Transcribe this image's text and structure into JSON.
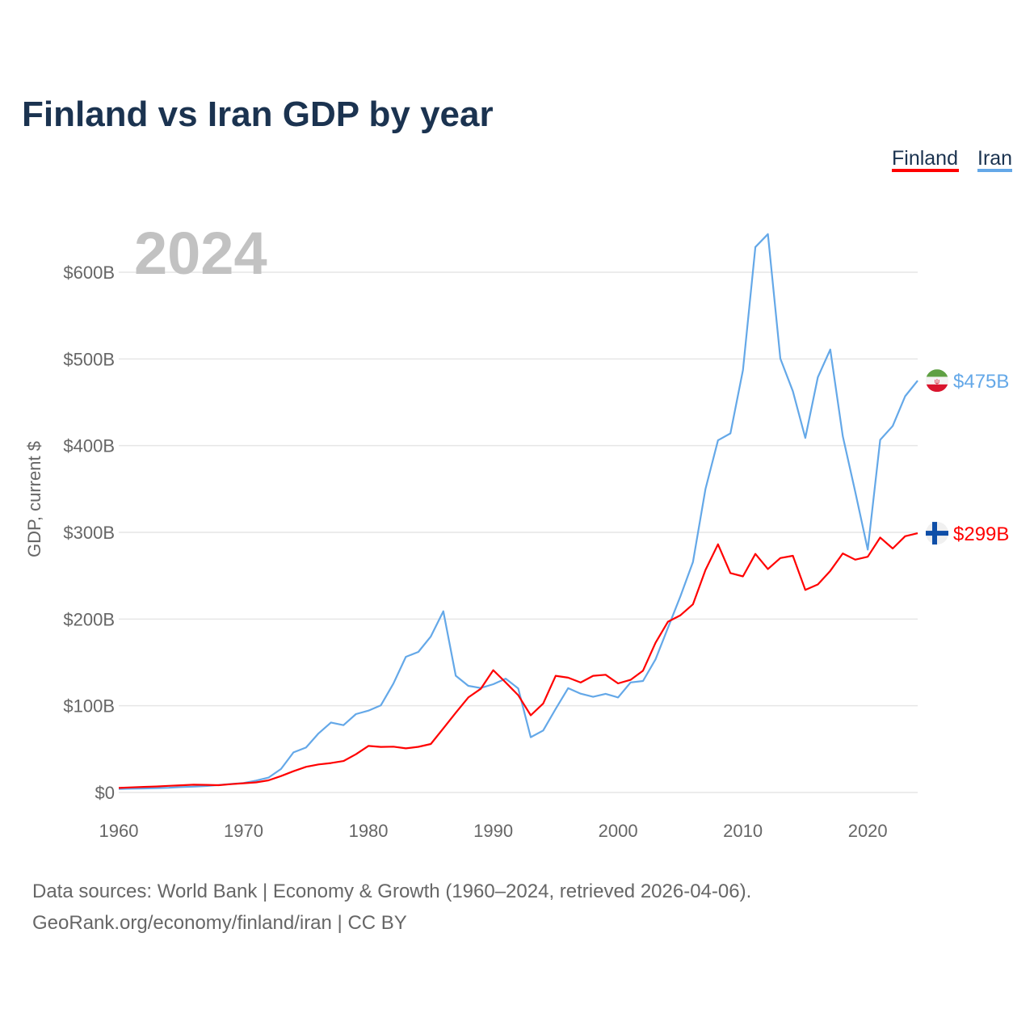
{
  "chart_data": {
    "type": "line",
    "title": "Finland vs Iran GDP by year",
    "ylabel": "GDP, current $",
    "xlabel": "",
    "current_year": "2024",
    "xlim": [
      1960,
      2024
    ],
    "ylim": [
      0,
      600
    ],
    "x_ticks": [
      1960,
      1970,
      1980,
      1990,
      2000,
      2010,
      2020
    ],
    "x_tick_labels": [
      "1960",
      "1970",
      "1980",
      "1990",
      "2000",
      "2010",
      "2020"
    ],
    "y_ticks": [
      0,
      100,
      200,
      300,
      400,
      500,
      600
    ],
    "y_tick_labels": [
      "$0",
      "$100B",
      "$200B",
      "$300B",
      "$400B",
      "$500B",
      "$600B"
    ],
    "grid": true,
    "legend_position": "top-right",
    "x": [
      1960,
      1961,
      1962,
      1963,
      1964,
      1965,
      1966,
      1967,
      1968,
      1969,
      1970,
      1971,
      1972,
      1973,
      1974,
      1975,
      1976,
      1977,
      1978,
      1979,
      1980,
      1981,
      1982,
      1983,
      1984,
      1985,
      1986,
      1987,
      1988,
      1989,
      1990,
      1991,
      1992,
      1993,
      1994,
      1995,
      1996,
      1997,
      1998,
      1999,
      2000,
      2001,
      2002,
      2003,
      2004,
      2005,
      2006,
      2007,
      2008,
      2009,
      2010,
      2011,
      2012,
      2013,
      2014,
      2015,
      2016,
      2017,
      2018,
      2019,
      2020,
      2021,
      2022,
      2023,
      2024
    ],
    "series": [
      {
        "name": "Finland",
        "color": "#ff0000",
        "end_label": "$299B",
        "flag": "finland-flag",
        "values": [
          5.2,
          5.9,
          6.4,
          6.9,
          7.6,
          8.3,
          8.9,
          8.8,
          8.4,
          9.6,
          10.6,
          11.6,
          14.0,
          18.9,
          24.5,
          29.5,
          32.3,
          33.9,
          36.2,
          44.1,
          53.7,
          52.5,
          52.8,
          50.9,
          52.6,
          55.9,
          73.9,
          92.0,
          109.6,
          119.5,
          141.1,
          126.9,
          112.2,
          89.0,
          102.6,
          134.5,
          132.4,
          126.8,
          134.5,
          135.7,
          125.8,
          129.9,
          140.5,
          172.6,
          197.0,
          204.4,
          217.0,
          256.6,
          286.2,
          253.0,
          249.2,
          275.1,
          257.7,
          270.4,
          273.0,
          233.6,
          239.9,
          255.6,
          275.7,
          268.5,
          271.9,
          294.0,
          281.4,
          295.5,
          299.0
        ]
      },
      {
        "name": "Iran",
        "color": "#64a8e8",
        "end_label": "$475B",
        "flag": "iran-flag",
        "values": [
          4.1,
          4.4,
          4.7,
          4.9,
          5.4,
          6.2,
          6.7,
          7.5,
          8.6,
          9.8,
          10.9,
          13.7,
          17.1,
          27.1,
          46.2,
          51.8,
          68.1,
          80.7,
          77.6,
          90.4,
          94.4,
          100.5,
          125.6,
          156.4,
          162.1,
          179.9,
          209.0,
          134.6,
          123.0,
          120.5,
          124.8,
          131.3,
          120.0,
          63.7,
          71.5,
          96.4,
          120.3,
          113.9,
          110.3,
          113.8,
          109.6,
          126.9,
          128.6,
          153.5,
          190.0,
          226.5,
          265.7,
          349.9,
          406.1,
          414.1,
          487.1,
          629.1,
          644.0,
          500.4,
          462.8,
          408.9,
          478.9,
          510.8,
          410.9,
          346.9,
          280.1,
          406.7,
          422.7,
          457.0,
          475.0
        ]
      }
    ]
  },
  "footer": {
    "line1": "Data sources: World Bank | Economy & Growth (1960–2024, retrieved 2026-04-06).",
    "line2": "GeoRank.org/economy/finland/iran | CC BY"
  }
}
